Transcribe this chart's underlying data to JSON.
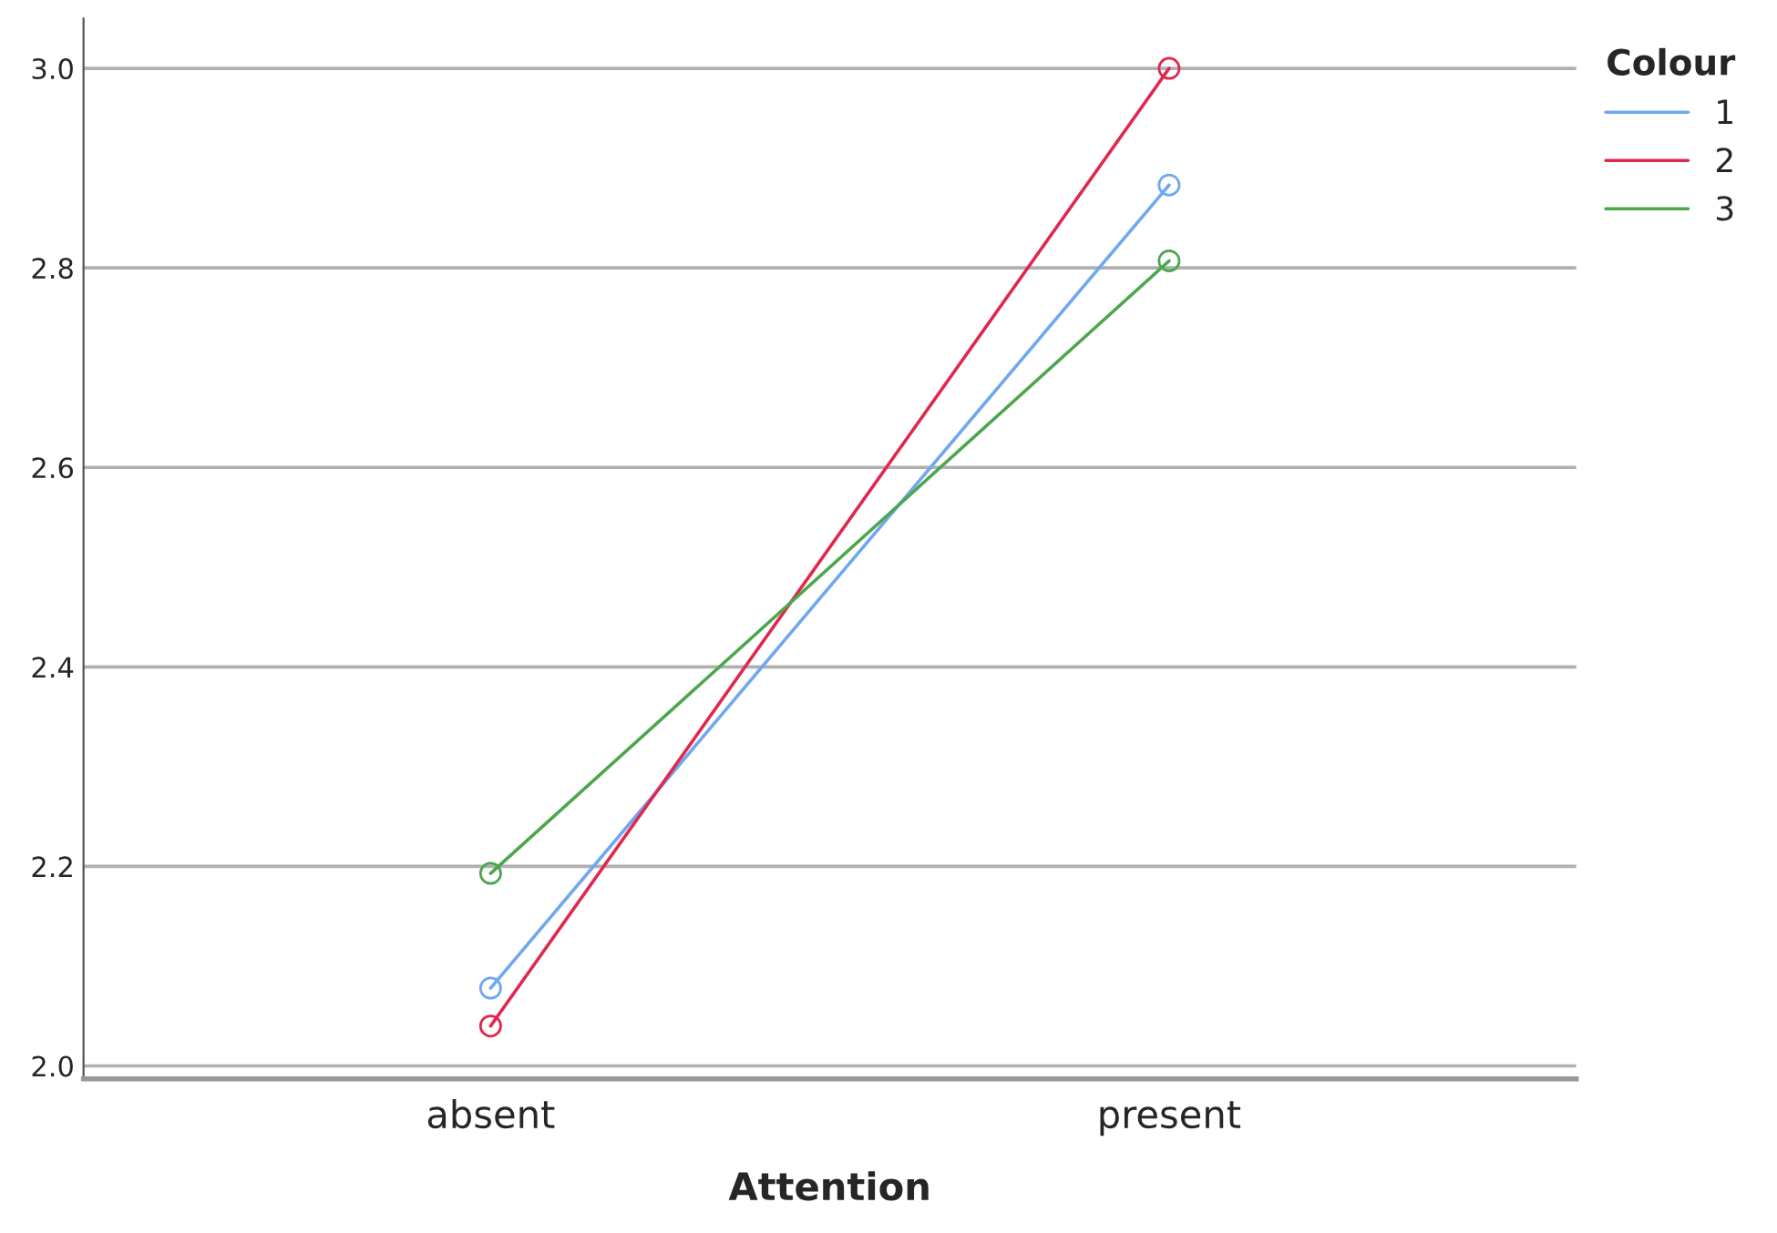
{
  "chart_data": {
    "type": "line",
    "xlabel": "Attention",
    "legend_title": "Colour",
    "categories": [
      "absent",
      "present"
    ],
    "series": [
      {
        "name": "1",
        "color": "#6fa8f0",
        "values": [
          2.078,
          2.883
        ]
      },
      {
        "name": "2",
        "color": "#e0284f",
        "values": [
          2.04,
          3.0
        ]
      },
      {
        "name": "3",
        "color": "#4da64d",
        "values": [
          2.193,
          2.807
        ]
      }
    ],
    "ylim": [
      1.987,
      3.05
    ],
    "yticks": [
      {
        "value": 2.0,
        "label": "2.0"
      },
      {
        "value": 2.2,
        "label": "2.2"
      },
      {
        "value": 2.4,
        "label": "2.4"
      },
      {
        "value": 2.6,
        "label": "2.6"
      },
      {
        "value": 2.8,
        "label": "2.8"
      },
      {
        "value": 3.0,
        "label": "3.0"
      }
    ],
    "grid": "y",
    "legend": "top right",
    "marker": "circle",
    "line_style": "solid"
  }
}
